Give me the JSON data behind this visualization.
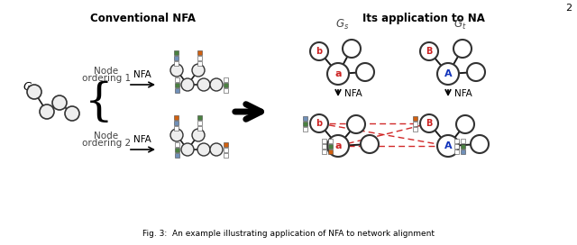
{
  "bg": "#ffffff",
  "node_fill": "#eeeeee",
  "node_fill_right": "#ffffff",
  "node_edge": "#333333",
  "green": "#4a8040",
  "blue": "#7090b8",
  "orange": "#d06010",
  "white": "#ffffff",
  "red_dash": "#cc1111",
  "dark": "#1a1a1a",
  "section_left": "Conventional NFA",
  "section_right": "Its application to NA",
  "G_label": "G",
  "Gs_label": "$G_s$",
  "Gt_label": "$G_t$",
  "NFA": "NFA",
  "la": "a",
  "lb": "b",
  "lA": "A",
  "lB": "B",
  "caption": "Fig. 3:  An example illustrating application of NFA to network alignment",
  "page": "2",
  "node_label_a_color": "#cc2222",
  "node_label_b_color": "#cc2222",
  "node_label_A_color": "#1133bb",
  "node_label_B_color": "#cc2222"
}
